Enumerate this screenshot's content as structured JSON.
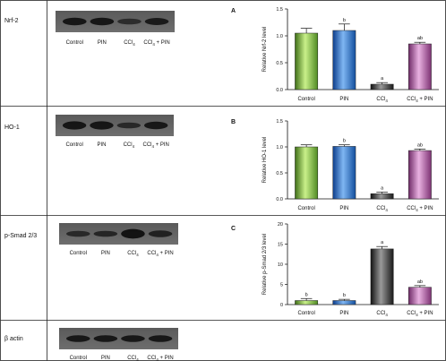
{
  "rows": [
    {
      "protein": "Nrf-2",
      "panel_letter": "A",
      "lanes": [
        "Control",
        "PIN",
        "CCl",
        "CCl + PIN"
      ]
    },
    {
      "protein": "HO-1",
      "panel_letter": "B",
      "lanes": [
        "Control",
        "PIN",
        "CCl",
        "CCl + PIN"
      ]
    },
    {
      "protein": "p-Smad 2/3",
      "panel_letter": "C",
      "lanes": [
        "Control",
        "PIN",
        "CCl",
        "CCl + PIN"
      ]
    },
    {
      "protein": "β actin",
      "panel_letter": "",
      "lanes": [
        "Control",
        "PIN",
        "CCl",
        "CCl + PIN"
      ]
    }
  ],
  "colors": {
    "Control": "#8fc94f",
    "PIN": "#2e78d6",
    "CCl4": "#333333",
    "CCl4 + PIN": "#b05fa8"
  },
  "chart_data": [
    {
      "type": "bar",
      "panel": "A",
      "categories": [
        "Control",
        "PIN",
        "CCl4",
        "CCl4 + PIN"
      ],
      "category_display": [
        "Control",
        "PIN",
        "CCl",
        "CCl + PIN"
      ],
      "subscript": "4",
      "values": [
        1.05,
        1.1,
        0.1,
        0.85
      ],
      "errors": [
        0.09,
        0.12,
        0.03,
        0.03
      ],
      "significance": [
        "",
        "b",
        "a",
        "ab"
      ],
      "ylabel": "Relative Nrf-2 level",
      "ylim": [
        0,
        1.5
      ],
      "yticks": [
        0,
        0.5,
        1,
        1.5
      ],
      "ytick_labels": [
        "0.0",
        "0.5",
        "1.0",
        "1.5"
      ]
    },
    {
      "type": "bar",
      "panel": "B",
      "categories": [
        "Control",
        "PIN",
        "CCl4",
        "CCl4 + PIN"
      ],
      "category_display": [
        "Control",
        "PIN",
        "CCl",
        "CCl + PIN"
      ],
      "subscript": "4",
      "values": [
        1.0,
        1.01,
        0.1,
        0.93
      ],
      "errors": [
        0.04,
        0.03,
        0.03,
        0.03
      ],
      "significance": [
        "",
        "b",
        "a",
        "ab"
      ],
      "ylabel": "Relative HO-1 level",
      "ylim": [
        0,
        1.5
      ],
      "yticks": [
        0,
        0.5,
        1,
        1.5
      ],
      "ytick_labels": [
        "0.0",
        "0.5",
        "1.0",
        "1.5"
      ]
    },
    {
      "type": "bar",
      "panel": "C",
      "categories": [
        "Control",
        "PIN",
        "CCl4",
        "CCl4 + PIN"
      ],
      "category_display": [
        "Control",
        "PIN",
        "CCl",
        "CCl + PIN"
      ],
      "subscript": "4",
      "values": [
        1.0,
        1.0,
        13.8,
        4.3
      ],
      "errors": [
        0.5,
        0.3,
        0.6,
        0.4
      ],
      "significance": [
        "b",
        "b",
        "a",
        "ab"
      ],
      "ylabel": "Relative p-Smad 2/3 level",
      "ylim": [
        0,
        20
      ],
      "yticks": [
        0,
        5,
        10,
        15,
        20
      ],
      "ytick_labels": [
        "0",
        "5",
        "10",
        "15",
        "20"
      ]
    }
  ]
}
